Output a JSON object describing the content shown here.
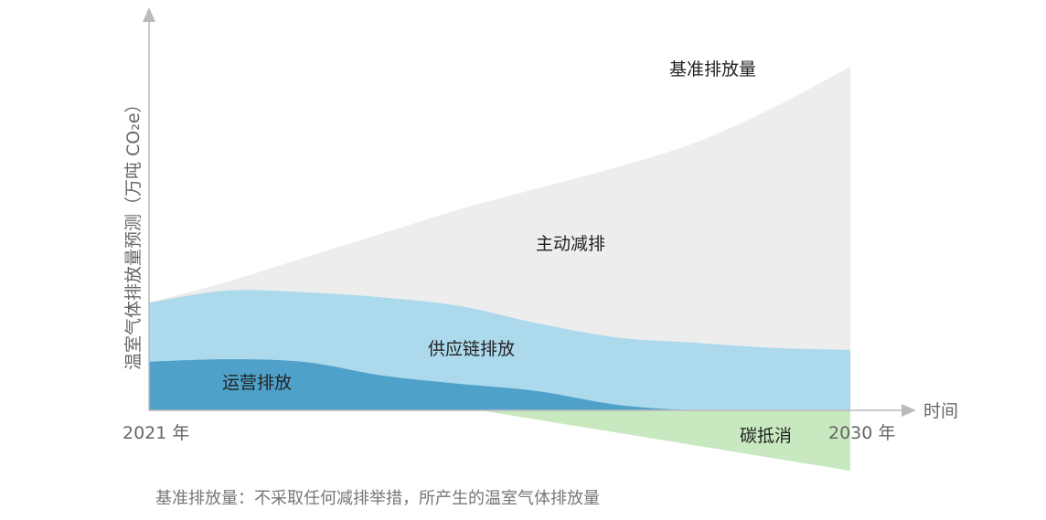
{
  "chart_data": {
    "type": "area",
    "title": "",
    "xlabel": "时间",
    "ylabel": "温室气体排放量预测（万吨 CO₂e）",
    "x_tick_labels": [
      "2021 年",
      "2030 年"
    ],
    "xlim": [
      2021,
      2030
    ],
    "ylim": [
      -20,
      115
    ],
    "grid": false,
    "x": [
      2021,
      2022,
      2023,
      2024,
      2025,
      2026,
      2027,
      2028,
      2029,
      2030
    ],
    "series": [
      {
        "name": "基准排放量",
        "color": "#ededed",
        "values": [
          31,
          37,
          44,
          51,
          58,
          64,
          70,
          77,
          87,
          99
        ]
      },
      {
        "name": "供应链排放",
        "color": "#acd9ec",
        "values": [
          31,
          34.5,
          34,
          32.5,
          30,
          25,
          21,
          19.5,
          18,
          17.4
        ]
      },
      {
        "name": "运营排放",
        "color": "#4fa1ca",
        "values": [
          14,
          14.7,
          13.9,
          10,
          7.6,
          5.5,
          1.6,
          0,
          0,
          0
        ]
      },
      {
        "name": "碳抵消",
        "color": "#c8e8c0",
        "values": [
          0,
          0,
          0,
          0,
          0,
          -3.7,
          -7.2,
          -10.6,
          -14,
          -17.4
        ]
      }
    ],
    "annotations": [
      "主动减排"
    ],
    "caption": "基准排放量：不采取任何减排举措，所产生的温室气体排放量"
  }
}
